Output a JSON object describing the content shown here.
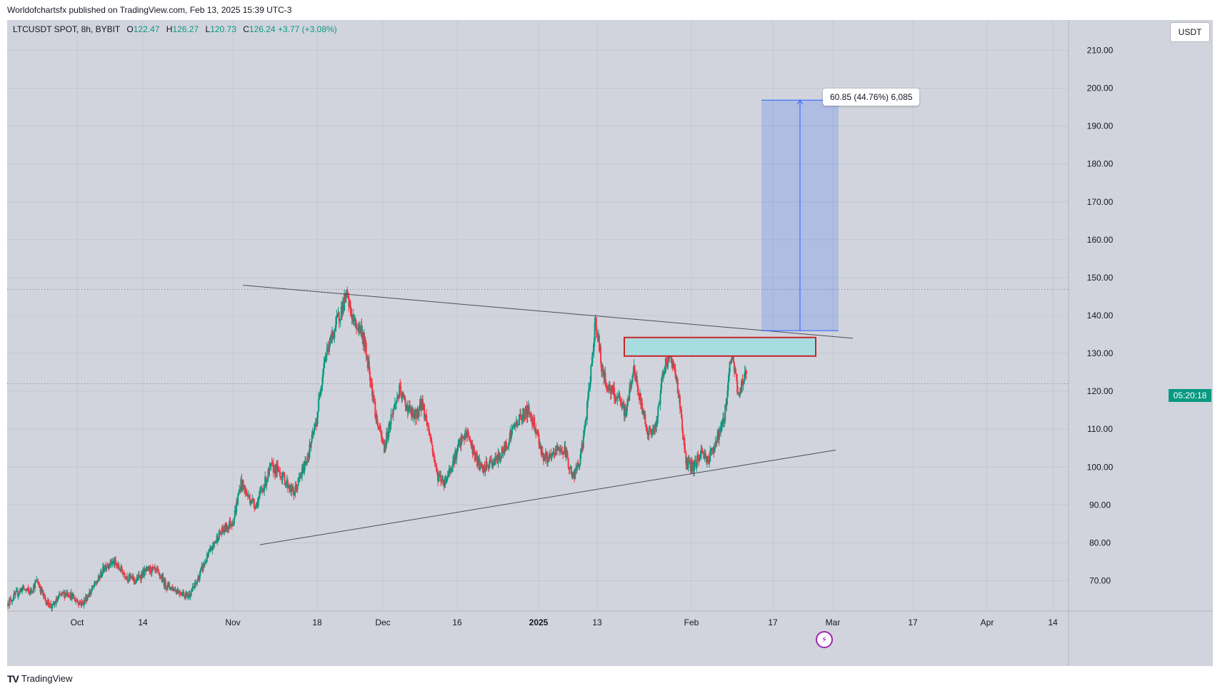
{
  "header": {
    "publish_line": "Worldofchartsfx published on TradingView.com, Feb 13, 2025 15:39 UTC-3"
  },
  "footer": {
    "brand": "TradingView"
  },
  "legend": {
    "symbol": "LTCUSDT SPOT, 8h, BYBIT",
    "o_label": "O",
    "o_value": "122.47",
    "h_label": "H",
    "h_value": "126.27",
    "l_label": "L",
    "l_value": "120.73",
    "c_label": "C",
    "c_value": "126.24",
    "change": "+3.77 (+3.08%)"
  },
  "currency": "USDT",
  "countdown": "05:20:18",
  "measure_label": "60.85 (44.76%) 6,085",
  "colors": {
    "up": "#089981",
    "down": "#f23645",
    "background": "#d1d4dc",
    "measure": "#2962ff",
    "zone": "#a8dde0",
    "zone_border": "#c62828"
  },
  "chart_data": {
    "type": "candlestick",
    "ylim": [
      62,
      218
    ],
    "y_ticks": [
      "210.00",
      "200.00",
      "190.00",
      "180.00",
      "170.00",
      "160.00",
      "150.00",
      "140.00",
      "130.00",
      "120.00",
      "110.00",
      "100.00",
      "90.00",
      "80.00",
      "70.00"
    ],
    "x_ticks": [
      "Oct",
      "14",
      "Nov",
      "18",
      "Dec",
      "16",
      "2025",
      "13",
      "Feb",
      "17",
      "Mar",
      "17",
      "Apr",
      "14"
    ],
    "close_path": [
      [
        0,
        64
      ],
      [
        10,
        66
      ],
      [
        20,
        68
      ],
      [
        30,
        67
      ],
      [
        40,
        70
      ],
      [
        50,
        65
      ],
      [
        60,
        63
      ],
      [
        70,
        66
      ],
      [
        80,
        67
      ],
      [
        90,
        65
      ],
      [
        100,
        64
      ],
      [
        110,
        67
      ],
      [
        120,
        70
      ],
      [
        130,
        74
      ],
      [
        140,
        75
      ],
      [
        150,
        73
      ],
      [
        160,
        71
      ],
      [
        170,
        70
      ],
      [
        180,
        72
      ],
      [
        190,
        73
      ],
      [
        200,
        72
      ],
      [
        210,
        69
      ],
      [
        220,
        68
      ],
      [
        230,
        67
      ],
      [
        240,
        66
      ],
      [
        250,
        69
      ],
      [
        260,
        74
      ],
      [
        270,
        78
      ],
      [
        280,
        82
      ],
      [
        290,
        84
      ],
      [
        300,
        86
      ],
      [
        310,
        96
      ],
      [
        320,
        92
      ],
      [
        330,
        90
      ],
      [
        340,
        95
      ],
      [
        350,
        100
      ],
      [
        360,
        99
      ],
      [
        370,
        96
      ],
      [
        380,
        93
      ],
      [
        390,
        98
      ],
      [
        400,
        104
      ],
      [
        410,
        112
      ],
      [
        420,
        128
      ],
      [
        430,
        134
      ],
      [
        440,
        140
      ],
      [
        450,
        145
      ],
      [
        460,
        138
      ],
      [
        470,
        136
      ],
      [
        480,
        126
      ],
      [
        490,
        112
      ],
      [
        500,
        105
      ],
      [
        510,
        114
      ],
      [
        520,
        120
      ],
      [
        530,
        116
      ],
      [
        540,
        113
      ],
      [
        550,
        117
      ],
      [
        560,
        109
      ],
      [
        570,
        98
      ],
      [
        580,
        96
      ],
      [
        590,
        101
      ],
      [
        600,
        106
      ],
      [
        610,
        109
      ],
      [
        620,
        103
      ],
      [
        630,
        99
      ],
      [
        640,
        101
      ],
      [
        650,
        102
      ],
      [
        660,
        105
      ],
      [
        670,
        110
      ],
      [
        680,
        113
      ],
      [
        690,
        115
      ],
      [
        700,
        111
      ],
      [
        710,
        103
      ],
      [
        720,
        102
      ],
      [
        730,
        105
      ],
      [
        740,
        104
      ],
      [
        750,
        97
      ],
      [
        760,
        102
      ],
      [
        770,
        117
      ],
      [
        780,
        139
      ],
      [
        790,
        124
      ],
      [
        800,
        120
      ],
      [
        810,
        118
      ],
      [
        820,
        114
      ],
      [
        830,
        126
      ],
      [
        840,
        117
      ],
      [
        850,
        109
      ],
      [
        860,
        110
      ],
      [
        870,
        126
      ],
      [
        880,
        130
      ],
      [
        890,
        120
      ],
      [
        900,
        101
      ],
      [
        910,
        100
      ],
      [
        920,
        104
      ],
      [
        930,
        102
      ],
      [
        940,
        107
      ],
      [
        950,
        112
      ],
      [
        960,
        130
      ],
      [
        970,
        119
      ],
      [
        980,
        126
      ]
    ],
    "last_close": 126.24,
    "support_trendline": [
      [
        95.2,
        79.5
      ],
      [
        1160,
        104.5
      ]
    ],
    "resistance_trendline": [
      [
        275,
        148
      ],
      [
        1184,
        134
      ]
    ],
    "resistance_zone": {
      "price_low": 129.3,
      "price_high": 134.2
    },
    "projection": {
      "start_price": 136.0,
      "end_price": 196.85,
      "change": 60.85,
      "percent": 44.76,
      "ticks": 6085
    },
    "dotted_levels": [
      146.9,
      122.0
    ]
  }
}
